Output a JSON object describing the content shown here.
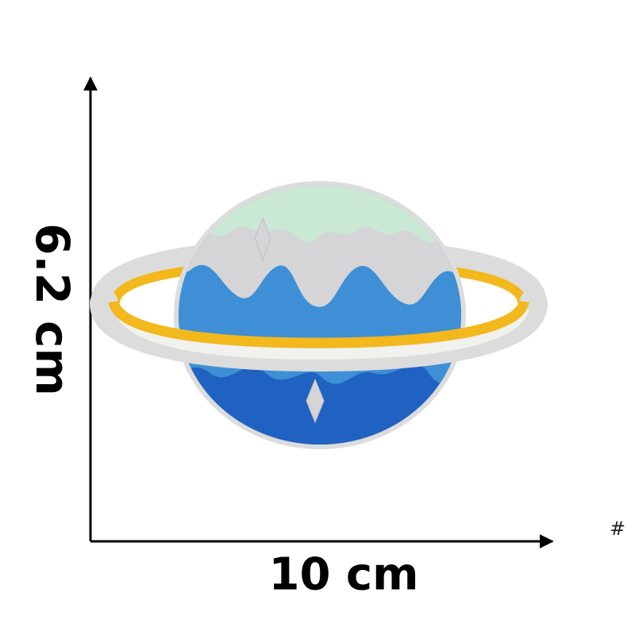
{
  "dimensions": {
    "height_label": "6.2 cm",
    "width_label": "10 cm"
  },
  "corner_mark": "#",
  "patch": {
    "subject": "planet-patch",
    "colors": {
      "border": "#dcdcdc",
      "ice_cap": "#c9e9d5",
      "ice_gray": "#d5d5d7",
      "ocean_light": "#3e8fd6",
      "ocean_dark": "#1f62c2",
      "ring_yellow": "#f2b81c",
      "ring_light": "#f1f1ee"
    }
  }
}
